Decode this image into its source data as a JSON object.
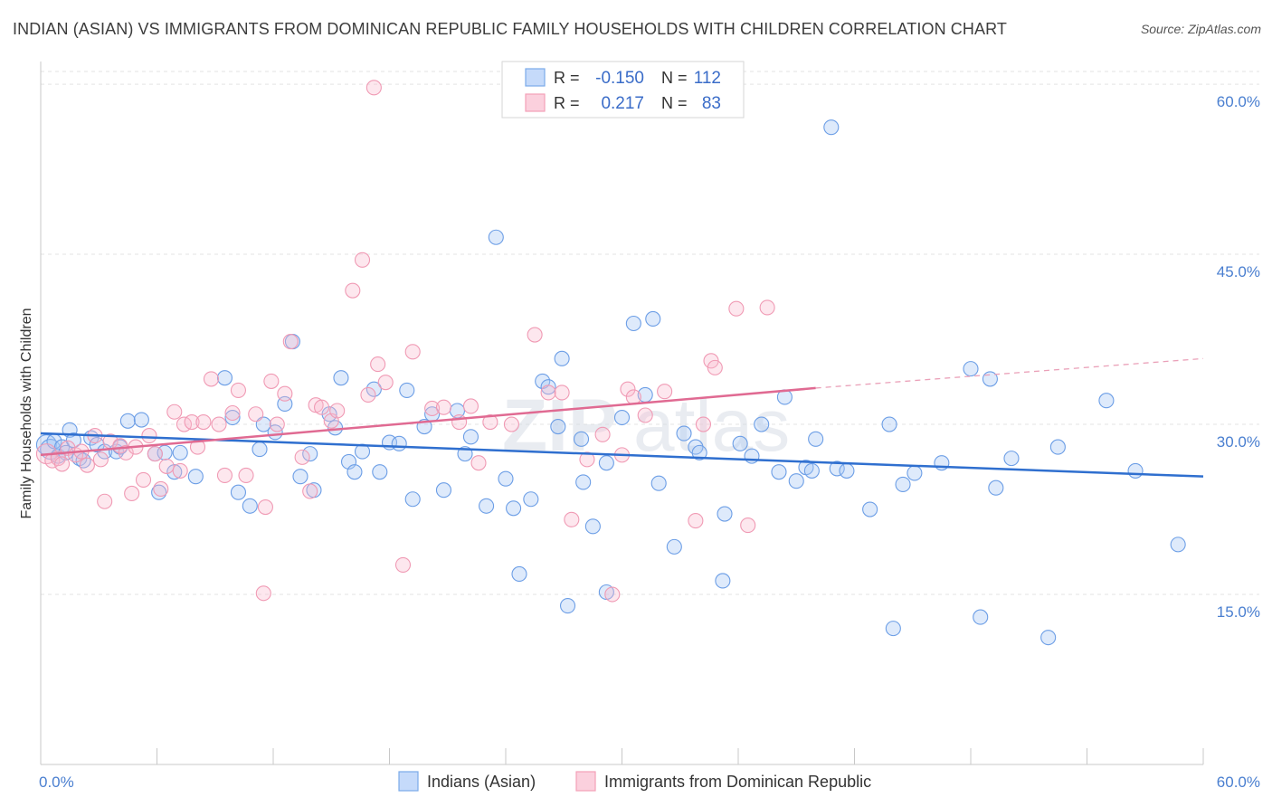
{
  "header": {
    "title": "INDIAN (ASIAN) VS IMMIGRANTS FROM DOMINICAN REPUBLIC FAMILY HOUSEHOLDS WITH CHILDREN CORRELATION CHART",
    "source": "Source: ZipAtlas.com"
  },
  "watermark": {
    "part1": "ZIP",
    "part2": "atlas"
  },
  "legend": {
    "rows": [
      {
        "r_label": "R =",
        "r_value": "-0.150",
        "n_label": "N =",
        "n_value": "112",
        "color": "#7aaae8"
      },
      {
        "r_label": "R =",
        "r_value": "0.217",
        "n_label": "N =",
        "n_value": "83",
        "color": "#f4a0b8"
      }
    ]
  },
  "bottom_legend": {
    "items": [
      {
        "label": "Indians (Asian)",
        "color": "#7aaae8"
      },
      {
        "label": "Immigrants from Dominican Republic",
        "color": "#f4a0b8"
      }
    ]
  },
  "chart_data": {
    "type": "scatter",
    "title": "INDIAN (ASIAN) VS IMMIGRANTS FROM DOMINICAN REPUBLIC FAMILY HOUSEHOLDS WITH CHILDREN CORRELATION CHART",
    "xlabel": "",
    "ylabel": "Family Households with Children",
    "xlim": [
      0,
      60
    ],
    "ylim": [
      0,
      62
    ],
    "x_tick_labels": [
      "0.0%",
      "60.0%"
    ],
    "y_ticks": [
      15,
      30,
      45,
      60
    ],
    "y_tick_labels": [
      "15.0%",
      "30.0%",
      "45.0%",
      "60.0%"
    ],
    "grid": true,
    "legend_position": "top-center",
    "series": [
      {
        "name": "Indians (Asian)",
        "color": "#7aaae8",
        "trend": {
          "x": [
            0,
            60
          ],
          "y": [
            29.2,
            25.4
          ],
          "style": "solid"
        },
        "points": [
          [
            0.3,
            28.2
          ],
          [
            0.5,
            27.8
          ],
          [
            0.7,
            28.5
          ],
          [
            0.9,
            27.2
          ],
          [
            1.1,
            28.0
          ],
          [
            1.3,
            27.5
          ],
          [
            1.5,
            29.5
          ],
          [
            1.7,
            28.6
          ],
          [
            2.0,
            27.0
          ],
          [
            2.2,
            26.8
          ],
          [
            2.6,
            28.8
          ],
          [
            2.9,
            28.2
          ],
          [
            3.3,
            27.6
          ],
          [
            3.9,
            27.6
          ],
          [
            4.1,
            28.0
          ],
          [
            4.5,
            30.3
          ],
          [
            5.2,
            30.4
          ],
          [
            5.9,
            27.4
          ],
          [
            6.1,
            24.0
          ],
          [
            6.4,
            27.5
          ],
          [
            6.9,
            25.8
          ],
          [
            7.2,
            27.5
          ],
          [
            8.0,
            25.4
          ],
          [
            9.5,
            34.1
          ],
          [
            9.9,
            30.6
          ],
          [
            10.2,
            24.0
          ],
          [
            10.8,
            22.8
          ],
          [
            11.3,
            27.8
          ],
          [
            11.5,
            30.0
          ],
          [
            12.1,
            29.3
          ],
          [
            12.6,
            31.8
          ],
          [
            13.0,
            37.3
          ],
          [
            13.4,
            25.4
          ],
          [
            13.9,
            27.4
          ],
          [
            14.1,
            24.2
          ],
          [
            14.9,
            30.9
          ],
          [
            15.2,
            29.7
          ],
          [
            15.5,
            34.1
          ],
          [
            15.9,
            26.7
          ],
          [
            16.2,
            25.8
          ],
          [
            16.6,
            27.6
          ],
          [
            17.2,
            33.1
          ],
          [
            17.5,
            25.8
          ],
          [
            18.0,
            28.4
          ],
          [
            18.5,
            28.3
          ],
          [
            18.9,
            33.0
          ],
          [
            19.2,
            23.4
          ],
          [
            19.8,
            29.8
          ],
          [
            20.2,
            30.9
          ],
          [
            20.8,
            24.2
          ],
          [
            21.5,
            31.2
          ],
          [
            21.9,
            27.4
          ],
          [
            22.2,
            28.9
          ],
          [
            23.0,
            22.8
          ],
          [
            23.5,
            46.5
          ],
          [
            24.0,
            25.2
          ],
          [
            24.4,
            22.6
          ],
          [
            24.7,
            16.8
          ],
          [
            25.3,
            23.4
          ],
          [
            25.9,
            33.8
          ],
          [
            26.2,
            33.3
          ],
          [
            26.7,
            29.8
          ],
          [
            26.9,
            35.8
          ],
          [
            27.2,
            14.0
          ],
          [
            27.9,
            28.7
          ],
          [
            28.0,
            24.9
          ],
          [
            28.5,
            21.0
          ],
          [
            29.2,
            15.2
          ],
          [
            29.2,
            26.6
          ],
          [
            30.0,
            30.6
          ],
          [
            30.6,
            38.9
          ],
          [
            31.2,
            32.6
          ],
          [
            31.6,
            39.3
          ],
          [
            31.9,
            24.8
          ],
          [
            32.7,
            19.2
          ],
          [
            33.2,
            29.2
          ],
          [
            33.8,
            28.0
          ],
          [
            34.0,
            27.5
          ],
          [
            35.2,
            16.2
          ],
          [
            35.3,
            22.1
          ],
          [
            36.1,
            28.3
          ],
          [
            36.7,
            27.2
          ],
          [
            37.2,
            30.0
          ],
          [
            38.1,
            25.8
          ],
          [
            38.4,
            32.4
          ],
          [
            39.0,
            25.0
          ],
          [
            39.5,
            26.2
          ],
          [
            39.8,
            25.9
          ],
          [
            40.0,
            28.7
          ],
          [
            40.8,
            56.2
          ],
          [
            41.1,
            26.1
          ],
          [
            41.6,
            25.9
          ],
          [
            42.8,
            22.5
          ],
          [
            43.8,
            30.0
          ],
          [
            44.0,
            12.0
          ],
          [
            44.5,
            24.7
          ],
          [
            45.1,
            25.7
          ],
          [
            46.5,
            26.6
          ],
          [
            48.0,
            34.9
          ],
          [
            48.5,
            13.0
          ],
          [
            49.0,
            34.0
          ],
          [
            49.3,
            24.4
          ],
          [
            50.1,
            27.0
          ],
          [
            52.0,
            11.2
          ],
          [
            52.5,
            28.0
          ],
          [
            55.0,
            32.1
          ],
          [
            56.5,
            25.9
          ],
          [
            58.7,
            19.4
          ]
        ]
      },
      {
        "name": "Immigrants from Dominican Republic",
        "color": "#f4a0b8",
        "trend": {
          "x": [
            0,
            40
          ],
          "y": [
            27.3,
            33.2
          ],
          "style": "solid",
          "extended_to": [
            60,
            35.8
          ]
        },
        "points": [
          [
            0.3,
            27.4
          ],
          [
            0.6,
            26.8
          ],
          [
            0.9,
            27.0
          ],
          [
            1.1,
            26.5
          ],
          [
            1.4,
            27.9
          ],
          [
            1.8,
            27.3
          ],
          [
            2.1,
            27.6
          ],
          [
            2.4,
            26.4
          ],
          [
            2.8,
            29.0
          ],
          [
            3.1,
            26.9
          ],
          [
            3.3,
            23.2
          ],
          [
            3.6,
            28.5
          ],
          [
            4.1,
            28.1
          ],
          [
            4.4,
            27.5
          ],
          [
            4.7,
            23.9
          ],
          [
            4.9,
            28.0
          ],
          [
            5.3,
            25.1
          ],
          [
            5.6,
            29.0
          ],
          [
            5.9,
            27.4
          ],
          [
            6.2,
            24.3
          ],
          [
            6.5,
            26.3
          ],
          [
            6.9,
            31.1
          ],
          [
            7.2,
            25.9
          ],
          [
            7.4,
            30.0
          ],
          [
            7.8,
            30.2
          ],
          [
            8.1,
            28.0
          ],
          [
            8.4,
            30.2
          ],
          [
            8.8,
            34.0
          ],
          [
            9.2,
            30.0
          ],
          [
            9.5,
            25.5
          ],
          [
            9.9,
            31.0
          ],
          [
            10.2,
            33.0
          ],
          [
            10.6,
            25.5
          ],
          [
            11.1,
            30.9
          ],
          [
            11.5,
            15.1
          ],
          [
            11.6,
            22.7
          ],
          [
            11.9,
            33.8
          ],
          [
            12.2,
            30.0
          ],
          [
            12.6,
            32.7
          ],
          [
            12.9,
            37.3
          ],
          [
            13.5,
            27.1
          ],
          [
            13.9,
            24.1
          ],
          [
            14.2,
            31.7
          ],
          [
            14.5,
            31.5
          ],
          [
            15.0,
            30.3
          ],
          [
            15.3,
            31.2
          ],
          [
            16.1,
            41.8
          ],
          [
            16.6,
            44.5
          ],
          [
            16.9,
            32.6
          ],
          [
            17.4,
            35.3
          ],
          [
            17.8,
            33.7
          ],
          [
            18.7,
            17.6
          ],
          [
            19.2,
            36.4
          ],
          [
            20.2,
            31.4
          ],
          [
            20.8,
            31.5
          ],
          [
            21.6,
            30.2
          ],
          [
            22.2,
            31.6
          ],
          [
            22.6,
            26.6
          ],
          [
            23.2,
            30.2
          ],
          [
            24.3,
            30.0
          ],
          [
            25.5,
            37.9
          ],
          [
            26.2,
            32.8
          ],
          [
            26.9,
            32.8
          ],
          [
            27.4,
            21.6
          ],
          [
            28.2,
            26.9
          ],
          [
            29.0,
            29.1
          ],
          [
            29.5,
            15.0
          ],
          [
            30.0,
            27.3
          ],
          [
            30.3,
            33.1
          ],
          [
            30.6,
            32.4
          ],
          [
            31.2,
            30.8
          ],
          [
            32.2,
            32.9
          ],
          [
            33.8,
            21.5
          ],
          [
            34.2,
            30.0
          ],
          [
            34.6,
            35.6
          ],
          [
            34.8,
            35.0
          ],
          [
            35.9,
            40.2
          ],
          [
            36.5,
            21.1
          ],
          [
            37.5,
            40.3
          ],
          [
            17.2,
            59.7
          ]
        ]
      }
    ]
  }
}
